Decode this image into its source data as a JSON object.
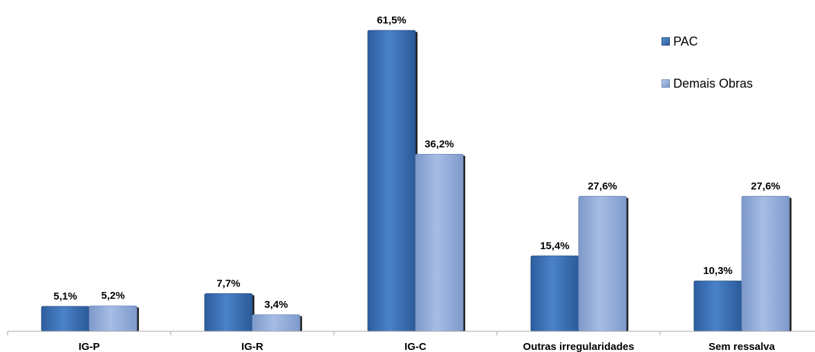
{
  "chart_data": {
    "type": "bar",
    "categories": [
      "IG-P",
      "IG-R",
      "IG-C",
      "Outras irregularidades",
      "Sem ressalva"
    ],
    "series": [
      {
        "name": "PAC",
        "values": [
          5.1,
          7.7,
          61.5,
          15.4,
          10.3
        ],
        "labels": [
          "5,1%",
          "7,7%",
          "61,5%",
          "15,4%",
          "10,3%"
        ],
        "color": "#3a6fb8"
      },
      {
        "name": "Demais Obras",
        "values": [
          5.2,
          3.4,
          36.2,
          27.6,
          27.6
        ],
        "labels": [
          "5,2%",
          "3,4%",
          "36,2%",
          "27,6%",
          "27,6%"
        ],
        "color": "#93acd9"
      }
    ],
    "ylim": [
      0,
      61.5
    ],
    "legend_position": "top-right",
    "grid": false
  }
}
